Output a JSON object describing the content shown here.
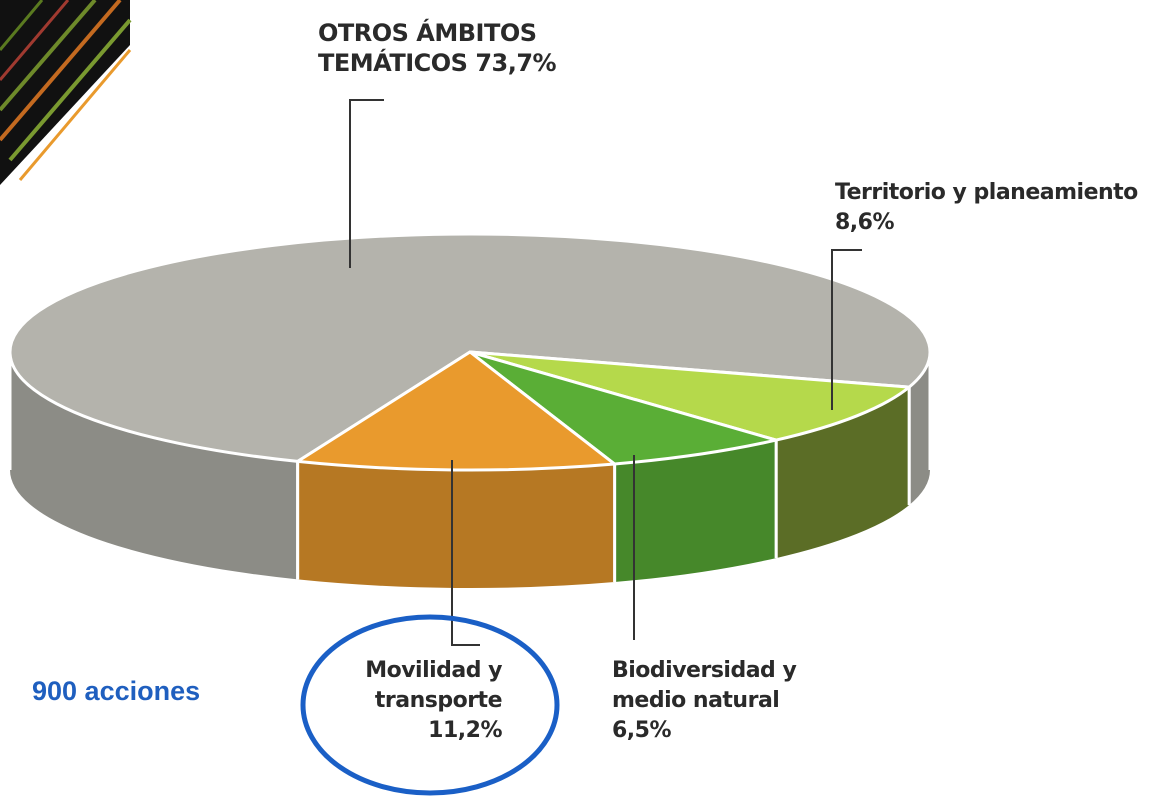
{
  "chart_data": {
    "type": "pie",
    "categories": [
      "OTROS ÁMBITOS TEMÁTICOS",
      "Territorio y planeamiento",
      "Biodiversidad y medio natural",
      "Movilidad y transporte"
    ],
    "values": [
      73.7,
      8.6,
      6.5,
      11.2
    ],
    "value_labels": [
      "73,7%",
      "8,6%",
      "6,5%",
      "11,2%"
    ],
    "colors": [
      "#b4b3ac",
      "#b5d94b",
      "#5aae36",
      "#e99a2d"
    ],
    "annotation": "900 acciones"
  }
}
